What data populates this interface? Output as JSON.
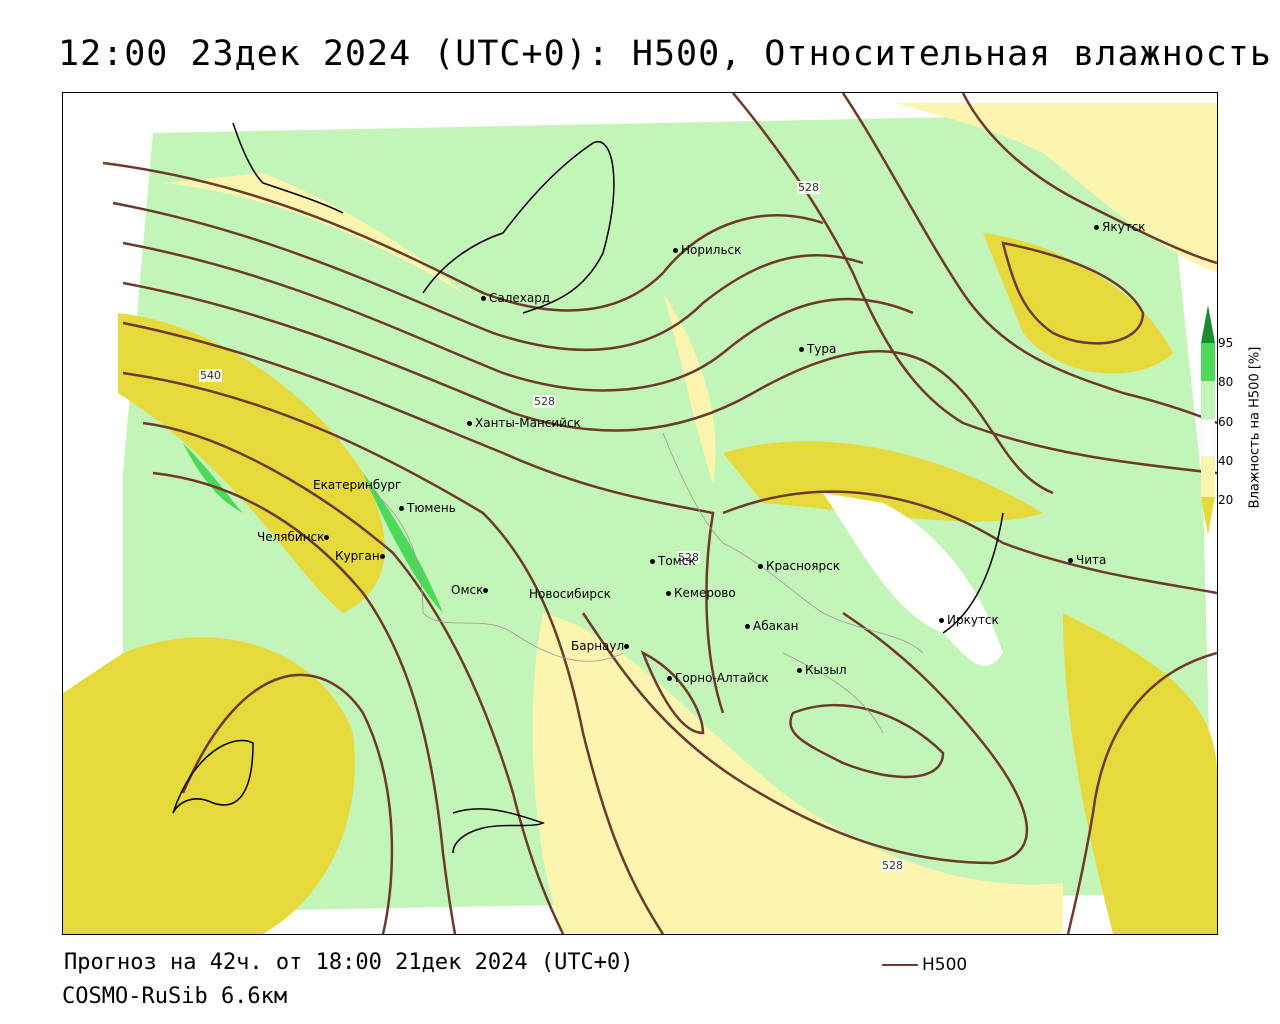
{
  "title": "12:00 23дек 2024 (UTC+0): H500, Относительная влажность",
  "forecast_line": "Прогноз на 42ч. от 18:00 21дек 2024 (UTC+0)",
  "model_name": "COSMO-RuSib 6.6км",
  "legend": {
    "label": "H500",
    "color": "#6b3a2a"
  },
  "colorbar": {
    "label": "Влажность на H500 [%]",
    "ticks": [
      "95",
      "80",
      "60",
      "40",
      "20"
    ],
    "colors": {
      "dark_green": "#1a8c2e",
      "green": "#4cd95a",
      "light_green": "#c4f5b8",
      "white": "#ffffff",
      "light_yellow": "#fbf5b0",
      "yellow": "#e6d93c"
    }
  },
  "contour_labels": [
    "528",
    "540",
    "528",
    "528",
    "528"
  ],
  "cities": [
    {
      "name": "Якутск"
    },
    {
      "name": "Норильск"
    },
    {
      "name": "Салехард"
    },
    {
      "name": "Тура"
    },
    {
      "name": "Ханты-Мансийск"
    },
    {
      "name": "Екатеринбург"
    },
    {
      "name": "Тюмень"
    },
    {
      "name": "Челябинск"
    },
    {
      "name": "Курган"
    },
    {
      "name": "Омск"
    },
    {
      "name": "Томск"
    },
    {
      "name": "Новосибирск"
    },
    {
      "name": "Кемерово"
    },
    {
      "name": "Красноярск"
    },
    {
      "name": "Абакан"
    },
    {
      "name": "Барнаул"
    },
    {
      "name": "Горно-Алтайск"
    },
    {
      "name": "Кызыл"
    },
    {
      "name": "Иркутск"
    },
    {
      "name": "Чита"
    }
  ]
}
